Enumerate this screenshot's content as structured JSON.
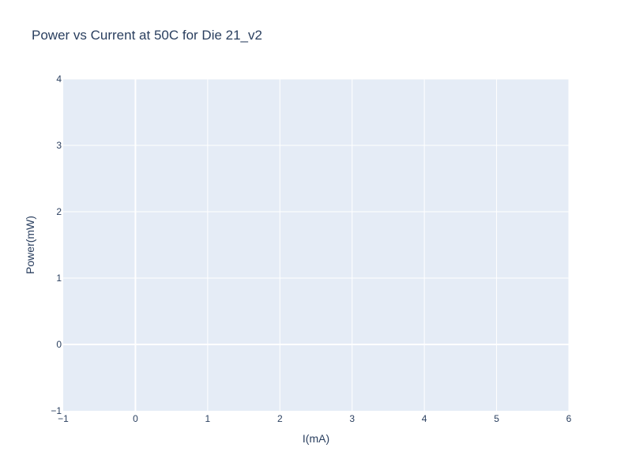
{
  "chart_data": {
    "type": "line",
    "title": "Power vs Current at 50C for Die 21_v2",
    "xlabel": "I(mA)",
    "ylabel": "Power(mW)",
    "xlim": [
      -1,
      6
    ],
    "ylim": [
      -1,
      4
    ],
    "x_ticks": [
      -1,
      0,
      1,
      2,
      3,
      4,
      5,
      6
    ],
    "y_ticks": [
      -1,
      0,
      1,
      2,
      3,
      4
    ],
    "grid": true,
    "series": [],
    "colors": {
      "plot_background": "#e5ecf6",
      "grid": "#ffffff",
      "text": "#2a3f5f"
    }
  }
}
